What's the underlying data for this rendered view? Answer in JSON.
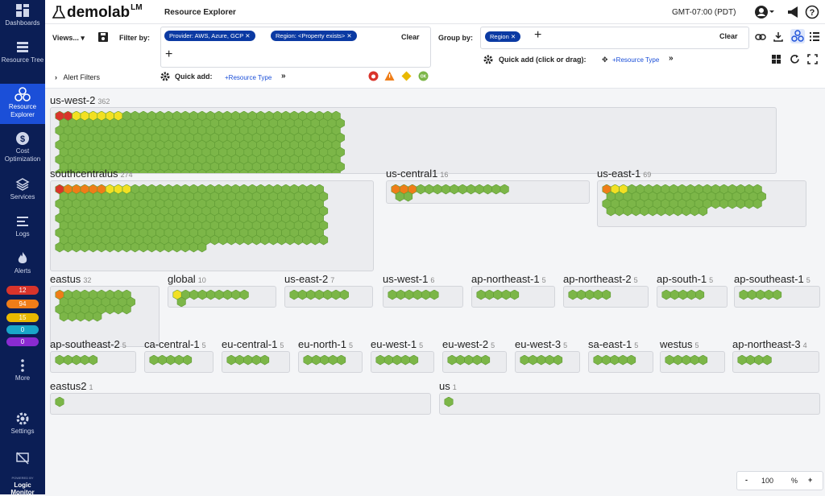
{
  "app": {
    "logo": "demolab",
    "logo_sup": "LM",
    "page_title": "Resource Explorer",
    "timezone": "GMT-07:00 (PDT)",
    "brand_bottom": [
      "Logic",
      "Monitor"
    ],
    "powered_by": "POWERED BY"
  },
  "nav": [
    {
      "label": "Dashboards",
      "icon": "dashboards-icon"
    },
    {
      "label": "Resource Tree",
      "icon": "resource-tree-icon"
    },
    {
      "label": "Resource Explorer",
      "icon": "resource-explorer-icon",
      "active": true
    },
    {
      "label": "Cost Optimization",
      "icon": "cost-icon"
    },
    {
      "label": "Services",
      "icon": "services-icon"
    },
    {
      "label": "Logs",
      "icon": "logs-icon"
    },
    {
      "label": "Alerts",
      "icon": "alerts-icon"
    },
    {
      "label": "More",
      "icon": "more-icon"
    },
    {
      "label": "Settings",
      "icon": "settings-icon"
    }
  ],
  "alert_counts": [
    {
      "v": "12",
      "c": "#d9342b"
    },
    {
      "v": "94",
      "c": "#ef7d18"
    },
    {
      "v": "15",
      "c": "#e9b800"
    },
    {
      "v": "0",
      "c": "#19a6c9"
    },
    {
      "v": "0",
      "c": "#8a2bd1"
    }
  ],
  "filter": {
    "views": "Views...",
    "filter_by": "Filter by:",
    "chips": [
      "Provider: AWS, Azure, GCP",
      "Region: <Property exists>"
    ],
    "clear": "Clear",
    "alert_filters": "Alert Filters",
    "quick_add": "Quick add:",
    "resource_type": "+Resource Type",
    "group_by": "Group by:",
    "group_chips": [
      "Region"
    ],
    "group_clear": "Clear",
    "quick_add_drag": "Quick add (click or drag):",
    "resource_type2": "+Resource Type"
  },
  "status_colors": {
    "critical": "#d9342b",
    "error": "#ef7d18",
    "warning": "#f2e023",
    "ok": "#7cb648"
  },
  "groups": [
    {
      "name": "us-west-2",
      "count": "362",
      "critical": 2,
      "error": 0,
      "warning": 6
    },
    {
      "name": "southcentralus",
      "count": "274",
      "critical": 1,
      "error": 5,
      "warning": 3
    },
    {
      "name": "us-central1",
      "count": "16",
      "critical": 0,
      "error": 3,
      "warning": 0
    },
    {
      "name": "us-east-1",
      "count": "69",
      "critical": 0,
      "error": 1,
      "warning": 2
    },
    {
      "name": "eastus",
      "count": "32",
      "critical": 0,
      "error": 1,
      "warning": 0
    },
    {
      "name": "global",
      "count": "10",
      "critical": 0,
      "error": 0,
      "warning": 1
    },
    {
      "name": "us-east-2",
      "count": "7",
      "critical": 0,
      "error": 0,
      "warning": 0
    },
    {
      "name": "us-west-1",
      "count": "6",
      "critical": 0,
      "error": 0,
      "warning": 0
    },
    {
      "name": "ap-northeast-1",
      "count": "5",
      "critical": 0,
      "error": 0,
      "warning": 0
    },
    {
      "name": "ap-northeast-2",
      "count": "5",
      "critical": 0,
      "error": 0,
      "warning": 0
    },
    {
      "name": "ap-south-1",
      "count": "5",
      "critical": 0,
      "error": 0,
      "warning": 0
    },
    {
      "name": "ap-southeast-1",
      "count": "5",
      "critical": 0,
      "error": 0,
      "warning": 0
    },
    {
      "name": "ap-southeast-2",
      "count": "5",
      "critical": 0,
      "error": 0,
      "warning": 0
    },
    {
      "name": "ca-central-1",
      "count": "5",
      "critical": 0,
      "error": 0,
      "warning": 0
    },
    {
      "name": "eu-central-1",
      "count": "5",
      "critical": 0,
      "error": 0,
      "warning": 0
    },
    {
      "name": "eu-north-1",
      "count": "5",
      "critical": 0,
      "error": 0,
      "warning": 0
    },
    {
      "name": "eu-west-1",
      "count": "5",
      "critical": 0,
      "error": 0,
      "warning": 0
    },
    {
      "name": "eu-west-2",
      "count": "5",
      "critical": 0,
      "error": 0,
      "warning": 0
    },
    {
      "name": "eu-west-3",
      "count": "5",
      "critical": 0,
      "error": 0,
      "warning": 0
    },
    {
      "name": "sa-east-1",
      "count": "5",
      "critical": 0,
      "error": 0,
      "warning": 0
    },
    {
      "name": "westus",
      "count": "5",
      "critical": 0,
      "error": 0,
      "warning": 0
    },
    {
      "name": "ap-northeast-3",
      "count": "4",
      "critical": 0,
      "error": 0,
      "warning": 0
    },
    {
      "name": "eastus2",
      "count": "1",
      "critical": 0,
      "error": 0,
      "warning": 0
    },
    {
      "name": "us",
      "count": "1",
      "critical": 0,
      "error": 0,
      "warning": 0
    }
  ],
  "zoom": {
    "minus": "-",
    "value": "100",
    "unit": "%",
    "plus": "+"
  }
}
